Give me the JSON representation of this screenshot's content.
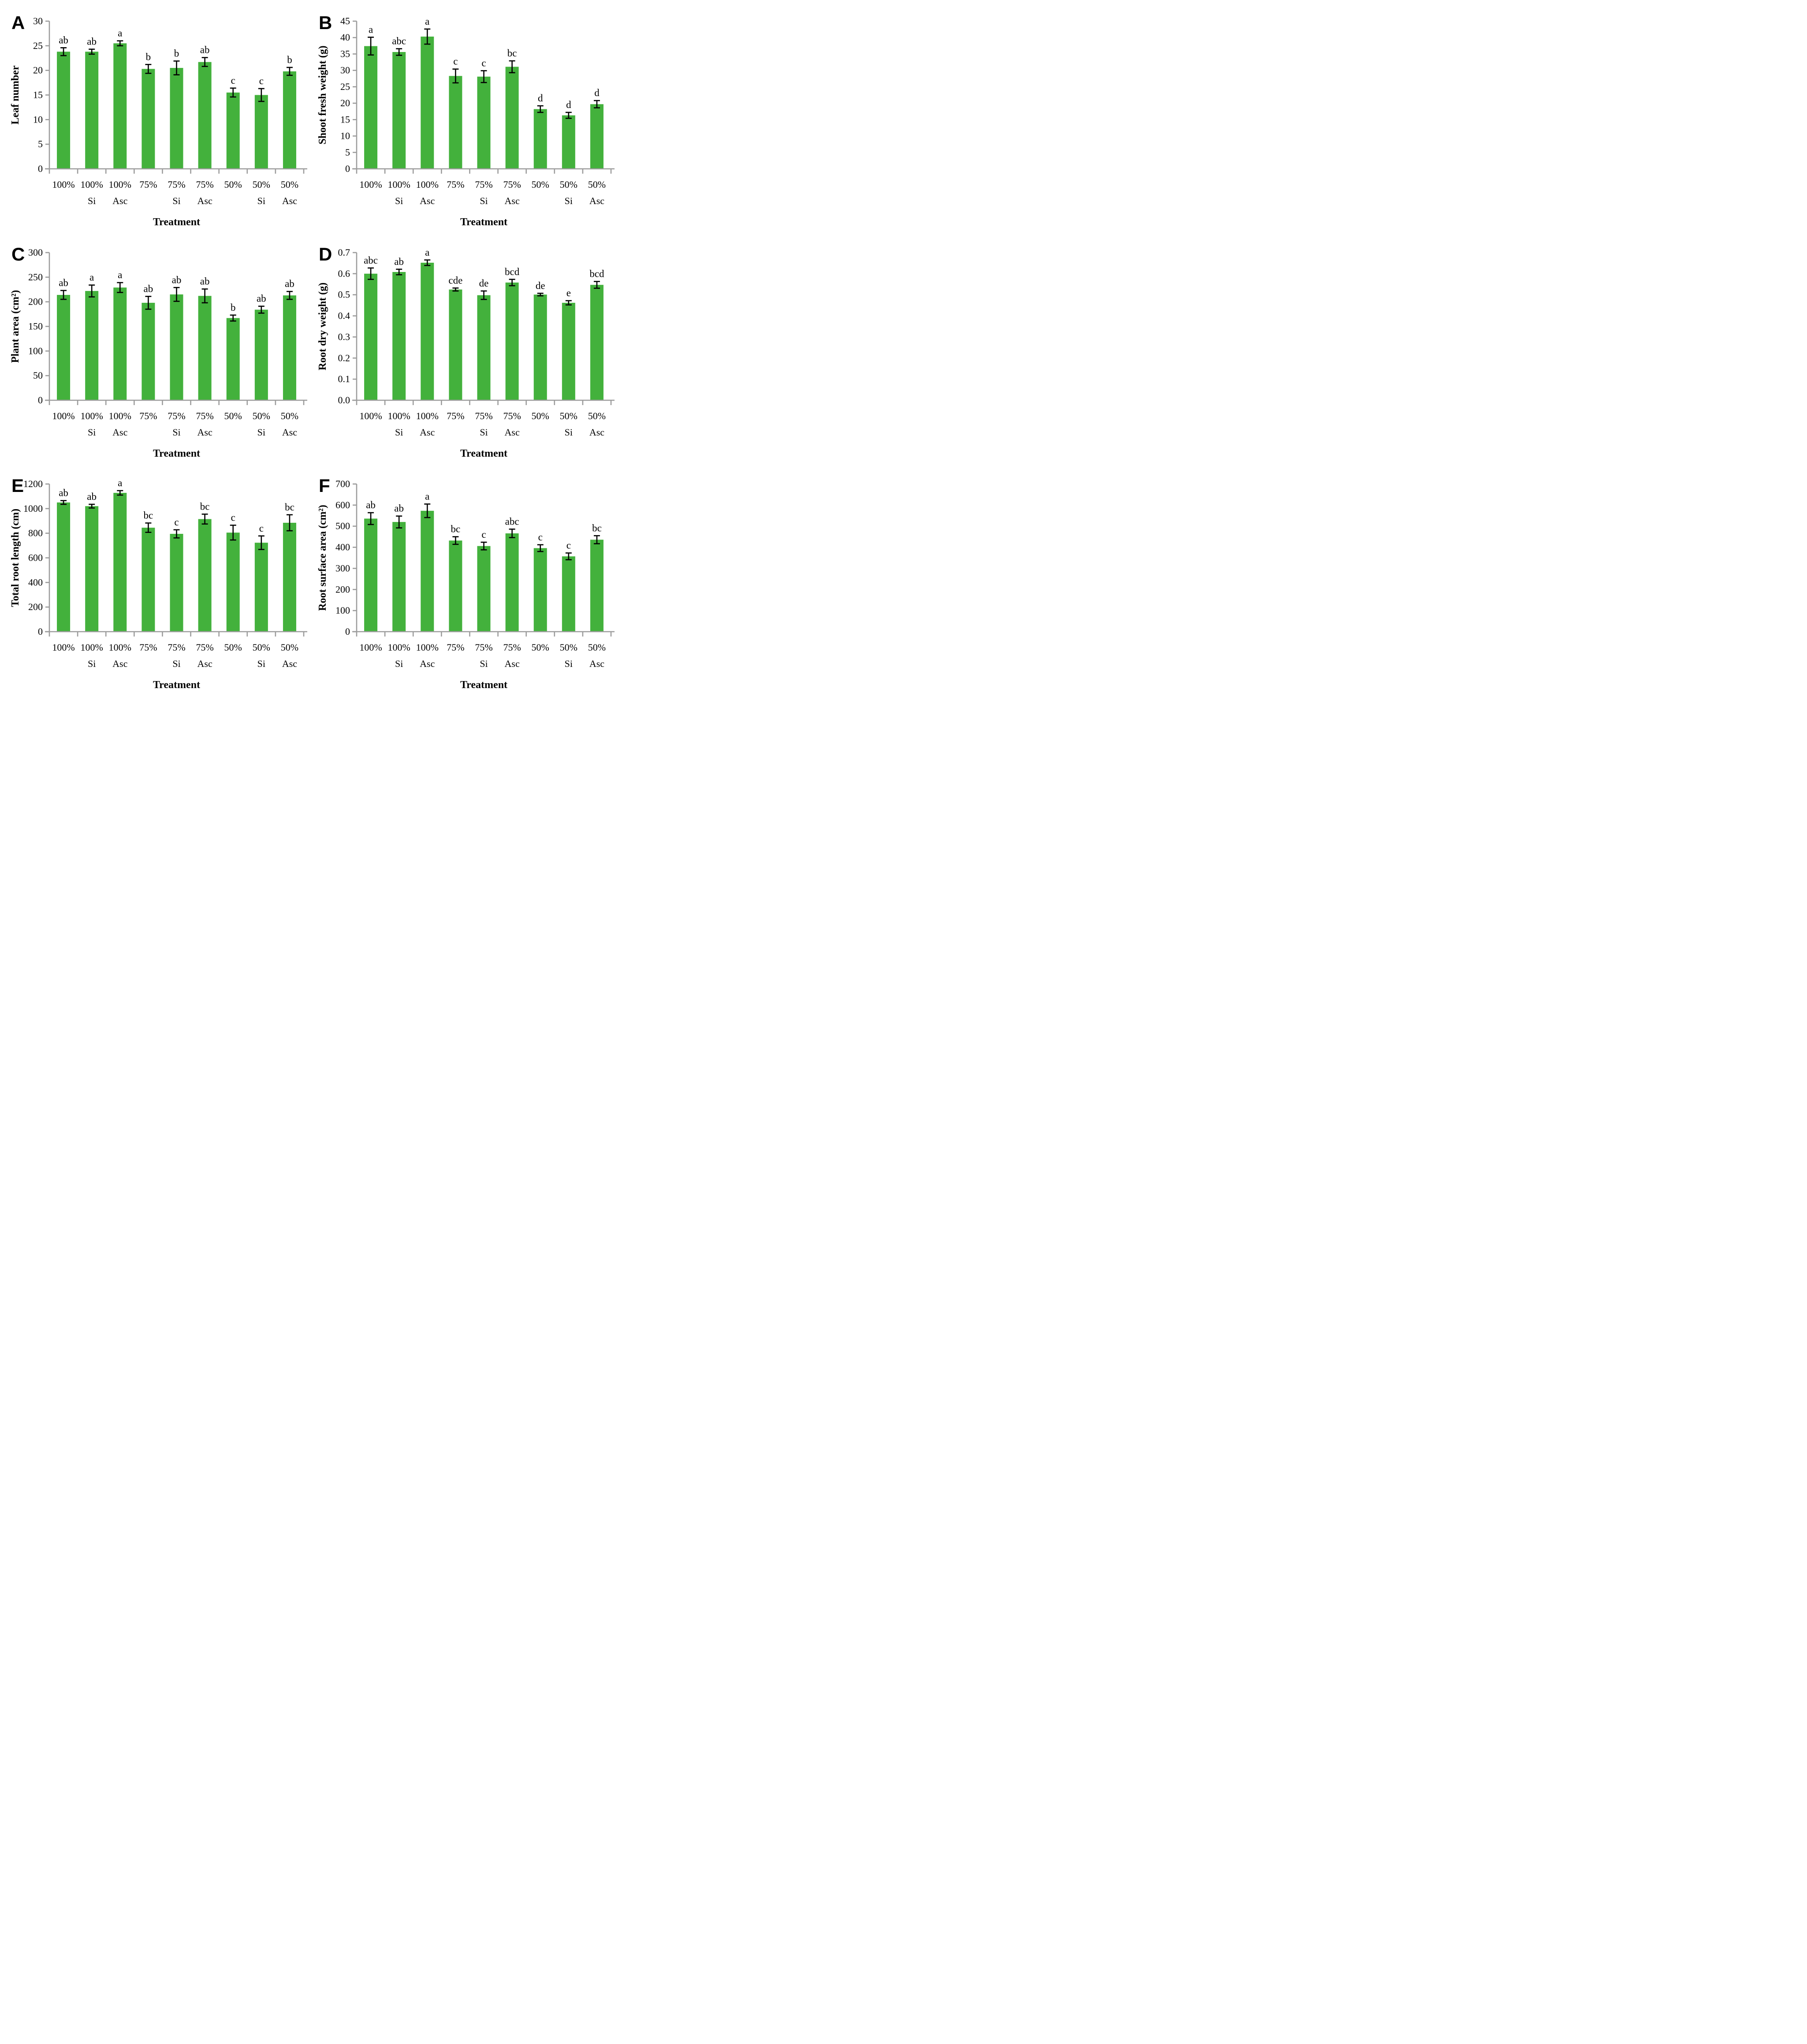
{
  "figure": {
    "description": "Six-panel bar chart figure (A-F) showing plant growth parameters under irrigation treatments with Si and Asc applications",
    "bar_color": "#43b13c",
    "axis_color": "#9c9c9c",
    "error_bar_color": "#000000",
    "text_color": "#000000"
  },
  "chart_data": {
    "type": "bar",
    "grid_layout": "2x3",
    "xlabel": "Treatment",
    "categories_line1": [
      "100%",
      "100%",
      "100%",
      "75%",
      "75%",
      "75%",
      "50%",
      "50%",
      "50%"
    ],
    "categories_line2": [
      "",
      "Si",
      "Asc",
      "",
      "Si",
      "Asc",
      "",
      "Si",
      "Asc"
    ],
    "legend": "none",
    "grid": "off",
    "panels": [
      {
        "panel": "A",
        "ylabel": "Leaf number",
        "ylim": [
          0,
          30
        ],
        "yticks": [
          "0",
          "5",
          "10",
          "15",
          "20",
          "25",
          "30"
        ],
        "values": [
          23.8,
          23.8,
          25.5,
          20.3,
          20.5,
          21.7,
          15.5,
          15.0,
          19.8
        ],
        "errors": [
          0.8,
          0.5,
          0.5,
          0.9,
          1.4,
          0.9,
          0.9,
          1.3,
          0.8
        ],
        "sig_letters": [
          "ab",
          "ab",
          "a",
          "b",
          "b",
          "ab",
          "c",
          "c",
          "b"
        ]
      },
      {
        "panel": "B",
        "ylabel": "Shoot fresh weight (g)",
        "ylim": [
          0,
          45
        ],
        "yticks": [
          "0",
          "5",
          "10",
          "15",
          "20",
          "25",
          "30",
          "35",
          "40",
          "45"
        ],
        "values": [
          37.4,
          35.6,
          40.3,
          28.3,
          28.1,
          31.1,
          18.2,
          16.3,
          19.7
        ],
        "errors": [
          2.7,
          1.0,
          2.3,
          2.1,
          1.8,
          1.8,
          1.0,
          0.9,
          1.1
        ],
        "sig_letters": [
          "a",
          "abc",
          "a",
          "c",
          "c",
          "bc",
          "d",
          "d",
          "d"
        ]
      },
      {
        "panel": "C",
        "ylabel": "Plant area (cm²)",
        "ylim": [
          0,
          300
        ],
        "yticks": [
          "0",
          "50",
          "100",
          "150",
          "200",
          "250",
          "300"
        ],
        "values": [
          214,
          222,
          229,
          198,
          215,
          212,
          167,
          184,
          213
        ],
        "errors": [
          9,
          12,
          10,
          13,
          14,
          14,
          6,
          7,
          8
        ],
        "sig_letters": [
          "ab",
          "a",
          "a",
          "ab",
          "ab",
          "ab",
          "b",
          "ab",
          "ab"
        ]
      },
      {
        "panel": "D",
        "ylabel": "Root dry weight (g)",
        "ylim": [
          0,
          0.7
        ],
        "yticks": [
          "0.0",
          "0.1",
          "0.2",
          "0.3",
          "0.4",
          "0.5",
          "0.6",
          "0.7"
        ],
        "values": [
          0.6,
          0.608,
          0.652,
          0.525,
          0.498,
          0.558,
          0.501,
          0.462,
          0.547
        ],
        "errors": [
          0.027,
          0.013,
          0.013,
          0.007,
          0.02,
          0.015,
          0.006,
          0.01,
          0.016
        ],
        "sig_letters": [
          "abc",
          "ab",
          "a",
          "cde",
          "de",
          "bcd",
          "de",
          "e",
          "bcd"
        ]
      },
      {
        "panel": "E",
        "ylabel": "Total root length (cm)",
        "ylim": [
          0,
          1200
        ],
        "yticks": [
          "0",
          "200",
          "400",
          "600",
          "800",
          "1000",
          "1200"
        ],
        "values": [
          1050,
          1020,
          1128,
          845,
          795,
          915,
          805,
          723,
          885
        ],
        "errors": [
          15,
          15,
          18,
          38,
          33,
          40,
          60,
          55,
          65
        ],
        "sig_letters": [
          "ab",
          "ab",
          "a",
          "bc",
          "c",
          "bc",
          "c",
          "c",
          "bc"
        ]
      },
      {
        "panel": "F",
        "ylabel": "Root surface area (cm²)",
        "ylim": [
          0,
          700
        ],
        "yticks": [
          "0",
          "100",
          "200",
          "300",
          "400",
          "500",
          "600",
          "700"
        ],
        "values": [
          536,
          520,
          573,
          432,
          406,
          466,
          396,
          357,
          436
        ],
        "errors": [
          28,
          28,
          32,
          18,
          18,
          20,
          16,
          16,
          19
        ],
        "sig_letters": [
          "ab",
          "ab",
          "a",
          "bc",
          "c",
          "abc",
          "c",
          "c",
          "bc"
        ]
      }
    ]
  }
}
